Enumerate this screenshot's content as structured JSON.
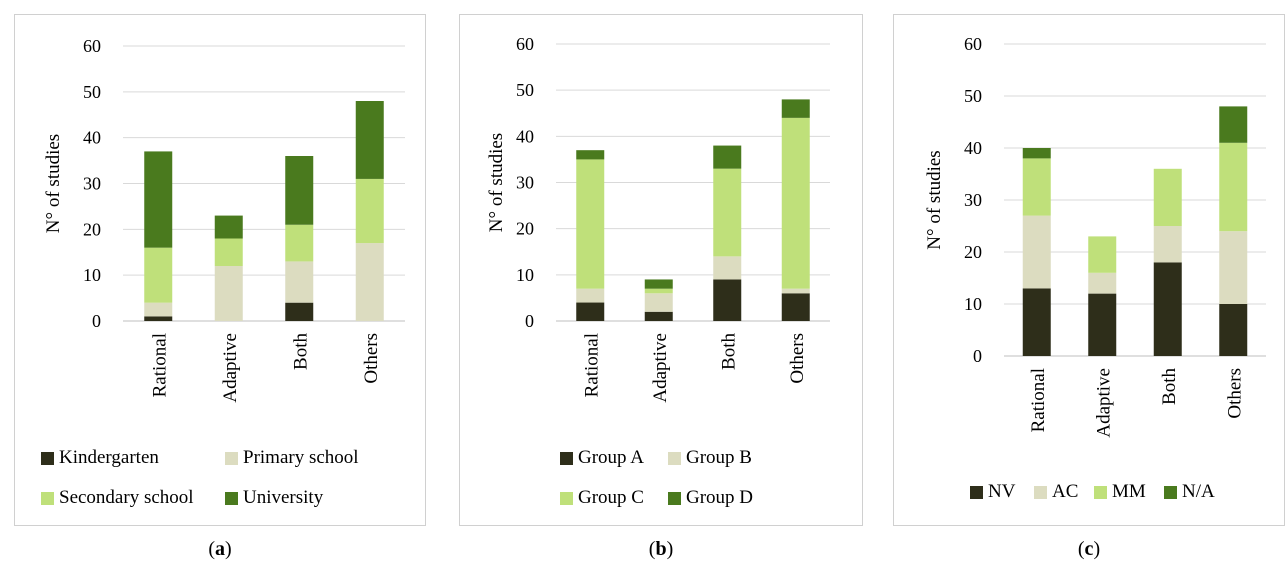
{
  "colors": {
    "dark": "#2e2e1a",
    "light": "#dcdcc0",
    "lime": "#bfe07a",
    "green": "#4a7a1e",
    "grid": "#d9d9d9",
    "axis": "#bfbfbf"
  },
  "captions": [
    "a",
    "b",
    "c"
  ],
  "chart_data": [
    {
      "type": "bar",
      "stacked": true,
      "ylabel": "N° of studies",
      "ylim": [
        0,
        60
      ],
      "yticks": [
        0,
        10,
        20,
        30,
        40,
        50,
        60
      ],
      "categories": [
        "Rational",
        "Adaptive",
        "Both",
        "Others"
      ],
      "legend_position": "bottom",
      "series": [
        {
          "name": "Kindergarten",
          "color": "#2e2e1a",
          "values": [
            1,
            0,
            4,
            0
          ]
        },
        {
          "name": "Primary school",
          "color": "#dcdcc0",
          "values": [
            3,
            12,
            9,
            17
          ]
        },
        {
          "name": "Secondary school",
          "color": "#bfe07a",
          "values": [
            12,
            6,
            8,
            14
          ]
        },
        {
          "name": "University",
          "color": "#4a7a1e",
          "values": [
            21,
            5,
            15,
            17
          ]
        }
      ]
    },
    {
      "type": "bar",
      "stacked": true,
      "ylabel": "N° of studies",
      "ylim": [
        0,
        60
      ],
      "yticks": [
        0,
        10,
        20,
        30,
        40,
        50,
        60
      ],
      "categories": [
        "Rational",
        "Adaptive",
        "Both",
        "Others"
      ],
      "legend_position": "bottom",
      "series": [
        {
          "name": "Group A",
          "color": "#2e2e1a",
          "values": [
            4,
            2,
            9,
            6
          ]
        },
        {
          "name": "Group B",
          "color": "#dcdcc0",
          "values": [
            3,
            4,
            5,
            1
          ]
        },
        {
          "name": "Group C",
          "color": "#bfe07a",
          "values": [
            28,
            1,
            19,
            37
          ]
        },
        {
          "name": "Group D",
          "color": "#4a7a1e",
          "values": [
            2,
            2,
            5,
            4
          ]
        }
      ]
    },
    {
      "type": "bar",
      "stacked": true,
      "ylabel": "N° of studies",
      "ylim": [
        0,
        60
      ],
      "yticks": [
        0,
        10,
        20,
        30,
        40,
        50,
        60
      ],
      "categories": [
        "Rational",
        "Adaptive",
        "Both",
        "Others"
      ],
      "legend_position": "bottom",
      "series": [
        {
          "name": "NV",
          "color": "#2e2e1a",
          "values": [
            13,
            12,
            18,
            10
          ]
        },
        {
          "name": "AC",
          "color": "#dcdcc0",
          "values": [
            14,
            4,
            7,
            14
          ]
        },
        {
          "name": "MM",
          "color": "#bfe07a",
          "values": [
            11,
            7,
            11,
            17
          ]
        },
        {
          "name": "N/A",
          "color": "#4a7a1e",
          "values": [
            2,
            0,
            0,
            7
          ]
        }
      ]
    }
  ]
}
